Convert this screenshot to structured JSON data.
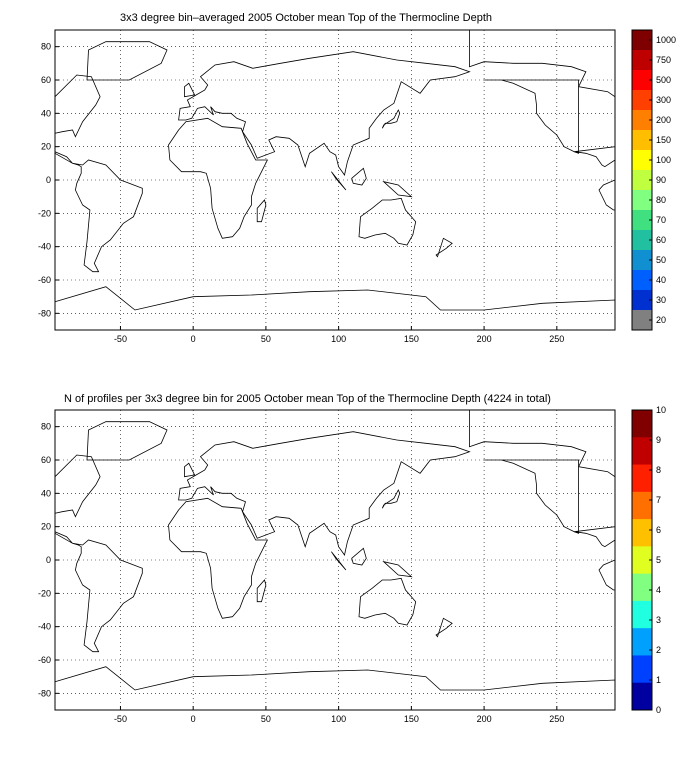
{
  "map1": {
    "title": "3x3 degree bin–averaged 2005 October mean Top of the Thermocline Depth",
    "x_ticks": [
      -50,
      0,
      50,
      100,
      150,
      200,
      250
    ],
    "y_ticks": [
      80,
      60,
      40,
      20,
      0,
      -20,
      -40,
      -60,
      -80
    ],
    "colorbar": {
      "labels": [
        "1000",
        "750",
        "500",
        "300",
        "200",
        "150",
        "100",
        "90",
        "80",
        "70",
        "60",
        "50",
        "40",
        "30",
        "20"
      ],
      "colors": [
        "#7f0000",
        "#bf0000",
        "#ff0000",
        "#ff4000",
        "#ff8000",
        "#ffbf00",
        "#ffff00",
        "#bfff40",
        "#80ff80",
        "#40e080",
        "#20c0a0",
        "#1090d0",
        "#0060ff",
        "#0030d0",
        "#808080"
      ]
    }
  },
  "map2": {
    "title": "N of profiles per 3x3 degree bin for 2005 October mean Top of the Thermocline Depth  (4224 in total)",
    "x_ticks": [
      -50,
      0,
      50,
      100,
      150,
      200,
      250
    ],
    "y_ticks": [
      80,
      60,
      40,
      20,
      0,
      -20,
      -40,
      -60,
      -80
    ],
    "colorbar": {
      "labels": [
        "10",
        "9",
        "8",
        "7",
        "6",
        "5",
        "4",
        "3",
        "2",
        "1",
        "0"
      ],
      "colors": [
        "#800000",
        "#c00000",
        "#ff2000",
        "#ff7000",
        "#ffc000",
        "#e0ff20",
        "#80ff80",
        "#20ffe0",
        "#00a0ff",
        "#0040ff",
        "#0000a0"
      ]
    }
  },
  "chart_data": [
    {
      "type": "heatmap",
      "title": "3x3 degree bin–averaged 2005 October mean Top of the Thermocline Depth",
      "xlim": [
        -95,
        290
      ],
      "ylim": [
        -90,
        90
      ],
      "grid": true,
      "bin_size_deg": 3,
      "colorbar_levels": [
        20,
        30,
        40,
        50,
        60,
        70,
        80,
        90,
        100,
        150,
        200,
        300,
        500,
        750,
        1000
      ]
    },
    {
      "type": "heatmap",
      "title": "N of profiles per 3x3 degree bin for 2005 October mean Top of the Thermocline Depth  (4224 in total)",
      "xlim": [
        -95,
        290
      ],
      "ylim": [
        -90,
        90
      ],
      "grid": true,
      "bin_size_deg": 3,
      "colorbar_levels": [
        0,
        1,
        2,
        3,
        4,
        5,
        6,
        7,
        8,
        9,
        10
      ],
      "total_profiles": 4224
    }
  ]
}
